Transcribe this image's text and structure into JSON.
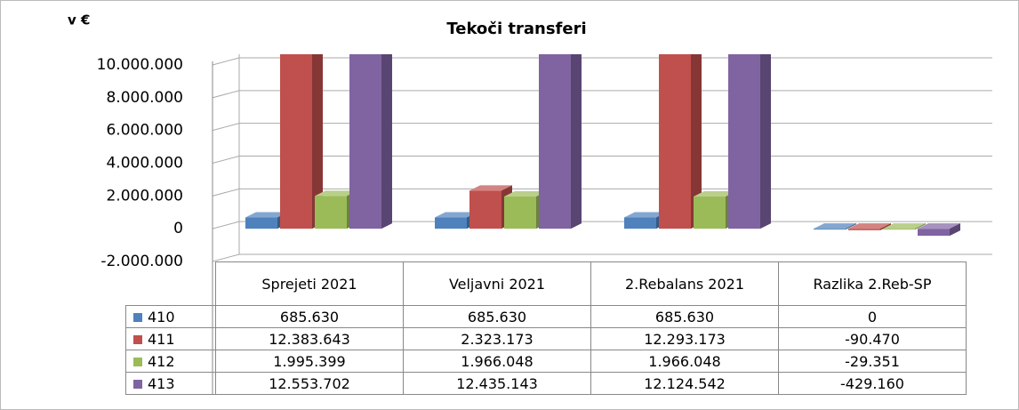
{
  "chart_data": {
    "type": "bar3d",
    "title": "Tekoči transferi",
    "unit_label": "v €",
    "categories": [
      "Sprejeti 2021",
      "Veljavni 2021",
      "2.Rebalans 2021",
      "Razlika 2.Reb-SP"
    ],
    "series": [
      {
        "name": "410",
        "color": "#4f81bd",
        "values": [
          685630,
          685630,
          685630,
          0
        ],
        "value_labels": [
          "685.630",
          "685.630",
          "685.630",
          "0"
        ]
      },
      {
        "name": "411",
        "color": "#c0504d",
        "values": [
          12383643,
          2323173,
          12293173,
          -90470
        ],
        "value_labels": [
          "12.383.643",
          "2.323.173",
          "12.293.173",
          "-90.470"
        ]
      },
      {
        "name": "412",
        "color": "#9bbb59",
        "values": [
          1995399,
          1966048,
          1966048,
          -29351
        ],
        "value_labels": [
          "1.995.399",
          "1.966.048",
          "1.966.048",
          "-29.351"
        ]
      },
      {
        "name": "413",
        "color": "#8064a2",
        "values": [
          12553702,
          12435143,
          12124542,
          -429160
        ],
        "value_labels": [
          "12.553.702",
          "12.435.143",
          "12.124.542",
          "-429.160"
        ]
      }
    ],
    "ylim": [
      -2000000,
      10000000
    ],
    "yticks": [
      {
        "value": -2000000,
        "label": "-2.000.000"
      },
      0,
      {
        "value": 2000000,
        "label": "2.000.000"
      },
      {
        "value": 4000000,
        "label": "4.000.000"
      },
      {
        "value": 6000000,
        "label": "6.000.000"
      },
      {
        "value": 8000000,
        "label": "8.000.000"
      },
      {
        "value": 10000000,
        "label": "10.000.000"
      }
    ],
    "grid": true
  }
}
